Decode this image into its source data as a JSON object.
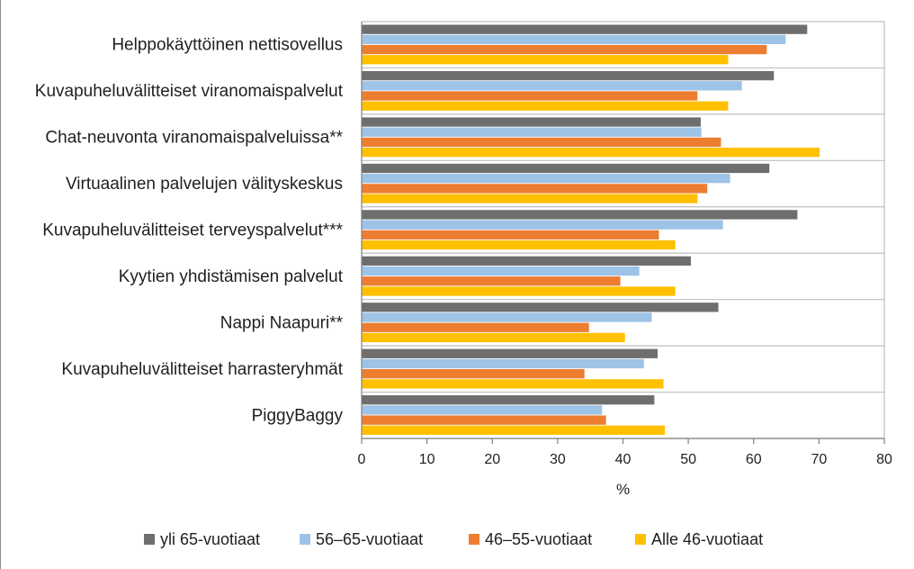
{
  "chart_data": {
    "type": "bar",
    "orientation": "horizontal",
    "categories": [
      "Helppokäyttöinen nettisovellus",
      "Kuvapuheluvälitteiset viranomaispalvelut",
      "Chat-neuvonta viranomaispalveluissa**",
      "Virtuaalinen palvelujen välityskeskus",
      "Kuvapuheluvälitteiset terveyspalvelut***",
      "Kyytien yhdistämisen palvelut",
      "Nappi Naapuri**",
      "Kuvapuheluvälitteiset harrasteryhmät",
      "PiggyBaggy"
    ],
    "series": [
      {
        "name": "yli 65-vuotiaat",
        "color": "#6e6e6e",
        "values": [
          68.2,
          63.1,
          51.9,
          62.4,
          66.7,
          50.4,
          54.6,
          45.3,
          44.8
        ]
      },
      {
        "name": "56–65-vuotiaat",
        "color": "#9dc3e6",
        "values": [
          64.9,
          58.2,
          52.0,
          56.4,
          55.3,
          42.5,
          44.4,
          43.2,
          36.8
        ]
      },
      {
        "name": "46–55-vuotiaat",
        "color": "#ed7d31",
        "values": [
          62.0,
          51.4,
          55.0,
          52.9,
          45.5,
          39.6,
          34.8,
          34.1,
          37.4
        ]
      },
      {
        "name": "Alle 46-vuotiaat",
        "color": "#ffc000",
        "values": [
          56.1,
          56.1,
          70.1,
          51.4,
          48.0,
          48.0,
          40.3,
          46.2,
          46.4
        ]
      }
    ],
    "xticks": [
      "0",
      "10",
      "20",
      "30",
      "40",
      "50",
      "60",
      "70",
      "80"
    ],
    "xlim": [
      0,
      80
    ],
    "xlabel": "%",
    "ylabel": "",
    "title": "",
    "grid": "horizontal separators between categories",
    "legend_position": "bottom"
  }
}
